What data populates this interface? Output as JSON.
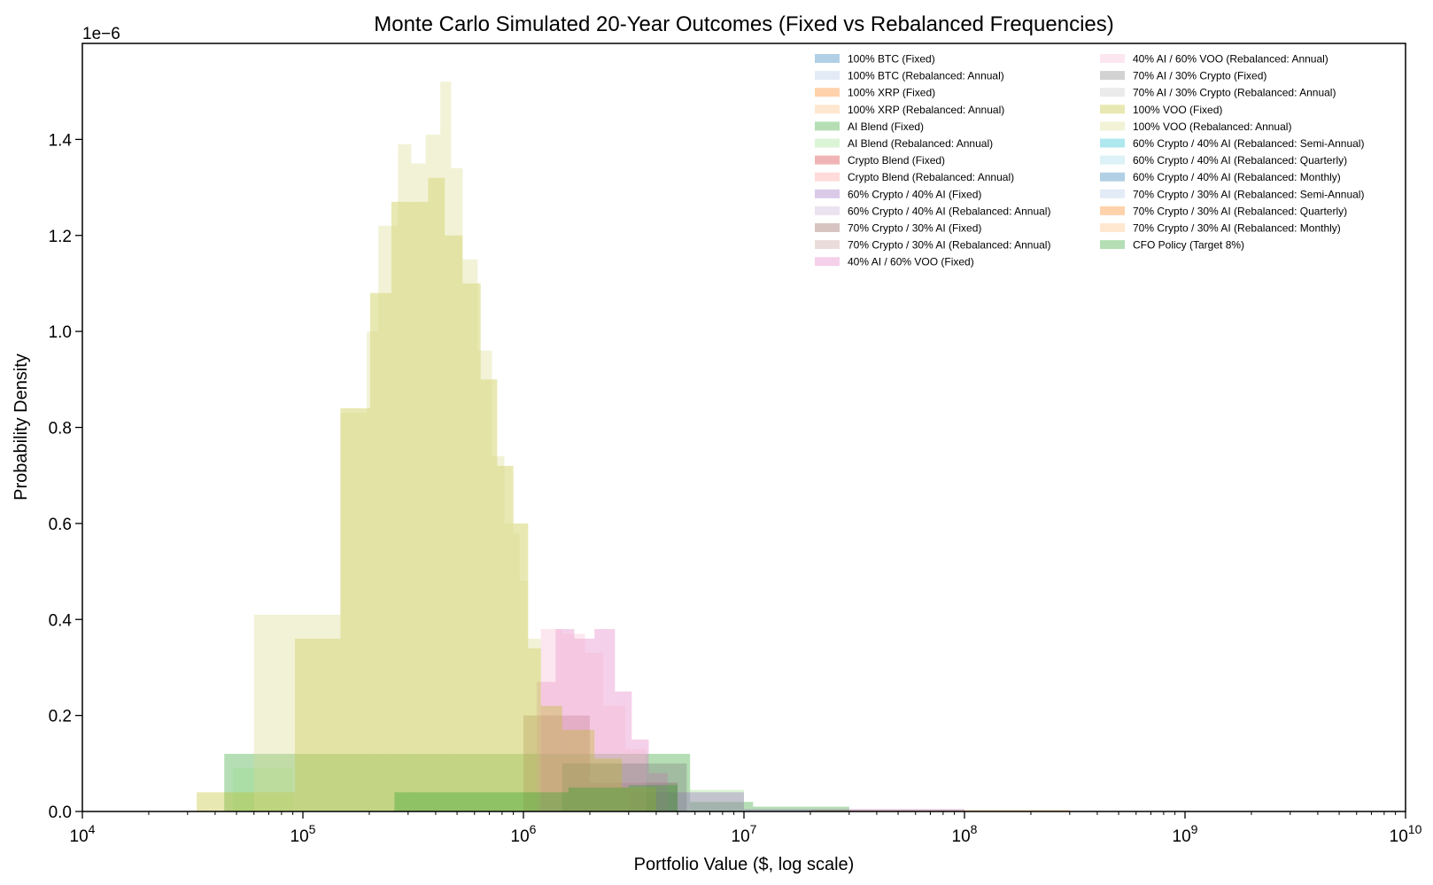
{
  "chart_data": {
    "type": "bar",
    "title": "Monte Carlo Simulated 20-Year Outcomes (Fixed vs Rebalanced Frequencies)",
    "xlabel": "Portfolio Value ($, log scale)",
    "ylabel": "Probability Density",
    "y_offset_label": "1e−6",
    "x_scale": "log",
    "xlim": [
      10000,
      10000000000
    ],
    "ylim": [
      0,
      1.6e-06
    ],
    "x_ticks": [
      {
        "value": 10000,
        "base": "10",
        "exp": "4"
      },
      {
        "value": 100000,
        "base": "10",
        "exp": "5"
      },
      {
        "value": 1000000,
        "base": "10",
        "exp": "6"
      },
      {
        "value": 10000000,
        "base": "10",
        "exp": "7"
      },
      {
        "value": 100000000,
        "base": "10",
        "exp": "8"
      },
      {
        "value": 1000000000,
        "base": "10",
        "exp": "9"
      },
      {
        "value": 10000000000,
        "base": "10",
        "exp": "10"
      }
    ],
    "y_ticks": [
      {
        "value": 0,
        "label": "0.0"
      },
      {
        "value": 2e-07,
        "label": "0.2"
      },
      {
        "value": 4e-07,
        "label": "0.4"
      },
      {
        "value": 6e-07,
        "label": "0.6"
      },
      {
        "value": 8e-07,
        "label": "0.8"
      },
      {
        "value": 1e-06,
        "label": "1.0"
      },
      {
        "value": 1.2e-06,
        "label": "1.2"
      },
      {
        "value": 1.4e-06,
        "label": "1.4"
      }
    ],
    "grid": false,
    "legend_placement": "upper-right",
    "legend_columns": 2,
    "series": [
      {
        "name": "100% BTC (Fixed)",
        "color": "#1f77b4",
        "alpha": 0.35,
        "bins": []
      },
      {
        "name": "100% BTC (Rebalanced: Annual)",
        "color": "#aec7e8",
        "alpha": 0.35,
        "bins": []
      },
      {
        "name": "100% XRP (Fixed)",
        "color": "#ff7f0e",
        "alpha": 0.35,
        "bins": [
          [
            20000000,
            300000000,
            3e-09
          ]
        ]
      },
      {
        "name": "100% XRP (Rebalanced: Annual)",
        "color": "#ffbb78",
        "alpha": 0.35,
        "bins": []
      },
      {
        "name": "AI Blend (Fixed)",
        "color": "#2ca02c",
        "alpha": 0.35,
        "bins": [
          [
            44000,
            5700000,
            1.2e-07
          ],
          [
            5700000,
            11000000,
            2e-08
          ],
          [
            11000000,
            30000000,
            1e-08
          ]
        ]
      },
      {
        "name": "AI Blend (Rebalanced: Annual)",
        "color": "#98df8a",
        "alpha": 0.35,
        "bins": [
          [
            48000,
            90000,
            9e-08
          ],
          [
            5700000,
            10000000,
            4.5e-08
          ]
        ]
      },
      {
        "name": "Crypto Blend (Fixed)",
        "color": "#d62728",
        "alpha": 0.35,
        "bins": []
      },
      {
        "name": "Crypto Blend (Rebalanced: Annual)",
        "color": "#ff9896",
        "alpha": 0.35,
        "bins": []
      },
      {
        "name": "60% Crypto / 40% AI (Fixed)",
        "color": "#9467bd",
        "alpha": 0.35,
        "bins": [
          [
            3000000,
            10000000,
            4e-08
          ],
          [
            10000000,
            100000000,
            5e-09
          ]
        ]
      },
      {
        "name": "60% Crypto / 40% AI (Rebalanced: Annual)",
        "color": "#c5b0d5",
        "alpha": 0.35,
        "bins": []
      },
      {
        "name": "70% Crypto / 30% AI (Fixed)",
        "color": "#8c564b",
        "alpha": 0.35,
        "bins": [
          [
            1000000,
            2000000,
            2e-07
          ],
          [
            2000000,
            5000000,
            6e-08
          ]
        ]
      },
      {
        "name": "70% Crypto / 30% AI (Rebalanced: Annual)",
        "color": "#c49c94",
        "alpha": 0.35,
        "bins": []
      },
      {
        "name": "40% AI / 60% VOO (Fixed)",
        "color": "#e377c2",
        "alpha": 0.35,
        "bins": [
          [
            1150000,
            1400000,
            2.7e-07
          ],
          [
            1400000,
            1700000,
            3.8e-07
          ],
          [
            1700000,
            2100000,
            3.6e-07
          ],
          [
            2100000,
            2600000,
            3.8e-07
          ],
          [
            2600000,
            3100000,
            2.5e-07
          ],
          [
            3100000,
            3700000,
            1.5e-07
          ],
          [
            3700000,
            4500000,
            8e-08
          ]
        ]
      },
      {
        "name": "40% AI / 60% VOO (Rebalanced: Annual)",
        "color": "#f7b6d2",
        "alpha": 0.35,
        "bins": [
          [
            1200000,
            1500000,
            3.8e-07
          ],
          [
            1500000,
            1900000,
            3.7e-07
          ],
          [
            1900000,
            2300000,
            3.3e-07
          ],
          [
            2300000,
            2900000,
            2.2e-07
          ],
          [
            2900000,
            3600000,
            1.3e-07
          ]
        ]
      },
      {
        "name": "70% AI / 30% Crypto (Fixed)",
        "color": "#7f7f7f",
        "alpha": 0.35,
        "bins": [
          [
            1500000,
            5500000,
            1e-07
          ]
        ]
      },
      {
        "name": "70% AI / 30% Crypto (Rebalanced: Annual)",
        "color": "#c7c7c7",
        "alpha": 0.35,
        "bins": []
      },
      {
        "name": "100% VOO (Fixed)",
        "color": "#bcbd22",
        "alpha": 0.35,
        "bins": [
          [
            33000,
            92000,
            4e-08
          ],
          [
            92000,
            148000,
            3.6e-07
          ],
          [
            148000,
            202000,
            8.4e-07
          ],
          [
            202000,
            252000,
            1.08e-06
          ],
          [
            252000,
            310000,
            1.27e-06
          ],
          [
            310000,
            370000,
            1.27e-06
          ],
          [
            370000,
            440000,
            1.32e-06
          ],
          [
            440000,
            530000,
            1.2e-06
          ],
          [
            530000,
            640000,
            1.1e-06
          ],
          [
            640000,
            760000,
            9e-07
          ],
          [
            760000,
            900000,
            7.2e-07
          ],
          [
            900000,
            1050000,
            6e-07
          ],
          [
            1050000,
            1200000,
            3.4e-07
          ],
          [
            1200000,
            1500000,
            2.2e-07
          ],
          [
            1500000,
            2100000,
            1.7e-07
          ],
          [
            2100000,
            2800000,
            1.1e-07
          ],
          [
            2800000,
            4000000,
            5e-08
          ]
        ]
      },
      {
        "name": "100% VOO (Rebalanced: Annual)",
        "color": "#dbdb8d",
        "alpha": 0.35,
        "bins": [
          [
            60000,
            148000,
            4.1e-07
          ],
          [
            148000,
            195000,
            8.3e-07
          ],
          [
            195000,
            220000,
            1e-06
          ],
          [
            220000,
            270000,
            1.22e-06
          ],
          [
            270000,
            310000,
            1.39e-06
          ],
          [
            310000,
            360000,
            1.35e-06
          ],
          [
            360000,
            420000,
            1.41e-06
          ],
          [
            420000,
            470000,
            1.52e-06
          ],
          [
            470000,
            530000,
            1.34e-06
          ],
          [
            530000,
            620000,
            1.15e-06
          ],
          [
            620000,
            720000,
            9.6e-07
          ],
          [
            720000,
            820000,
            7.4e-07
          ],
          [
            820000,
            900000,
            6e-07
          ],
          [
            900000,
            960000,
            5.8e-07
          ],
          [
            960000,
            1050000,
            4.8e-07
          ],
          [
            1050000,
            1200000,
            3.6e-07
          ]
        ]
      },
      {
        "name": "60% Crypto / 40% AI (Rebalanced: Semi-Annual)",
        "color": "#17becf",
        "alpha": 0.35,
        "bins": []
      },
      {
        "name": "60% Crypto / 40% AI (Rebalanced: Quarterly)",
        "color": "#9edae5",
        "alpha": 0.35,
        "bins": []
      },
      {
        "name": "60% Crypto / 40% AI (Rebalanced: Monthly)",
        "color": "#1f77b4",
        "alpha": 0.35,
        "bins": []
      },
      {
        "name": "70% Crypto / 30% AI (Rebalanced: Semi-Annual)",
        "color": "#aec7e8",
        "alpha": 0.35,
        "bins": []
      },
      {
        "name": "70% Crypto / 30% AI (Rebalanced: Quarterly)",
        "color": "#ff7f0e",
        "alpha": 0.35,
        "bins": []
      },
      {
        "name": "70% Crypto / 30% AI (Rebalanced: Monthly)",
        "color": "#ffbb78",
        "alpha": 0.35,
        "bins": []
      },
      {
        "name": "CFO Policy (Target 8%)",
        "color": "#2ca02c",
        "alpha": 0.35,
        "bins": [
          [
            260000,
            1600000,
            4e-08
          ],
          [
            1600000,
            3000000,
            5e-08
          ],
          [
            3000000,
            5000000,
            5.5e-08
          ]
        ]
      }
    ]
  }
}
